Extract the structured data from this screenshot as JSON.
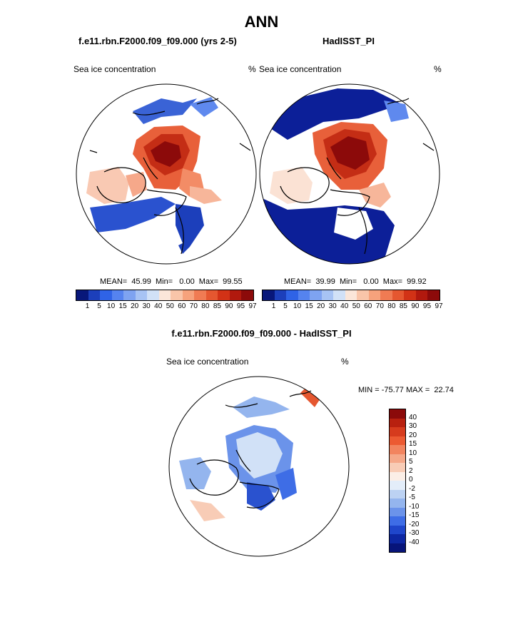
{
  "page": {
    "title": "ANN"
  },
  "panels": [
    {
      "name": "f.e11.rbn.F2000.f09_f09.000 (yrs 2-5)",
      "variable": "Sea ice concentration",
      "units": "%",
      "stats": "MEAN=  45.99  Min=   0.00  Max=  99.55"
    },
    {
      "name": "HadISST_PI",
      "variable": "Sea ice concentration",
      "units": "%",
      "stats": "MEAN=  39.99  Min=   0.00  Max=  99.92"
    }
  ],
  "abs_colorbar": {
    "colors": [
      "#08177a",
      "#1c3fbb",
      "#2f63e6",
      "#5583ef",
      "#7ea3f1",
      "#a7c3f4",
      "#d1e1f7",
      "#fbe6d9",
      "#f9c5a9",
      "#f6a27c",
      "#f07b53",
      "#e55730",
      "#d23216",
      "#b1190e",
      "#8c0a0a"
    ],
    "labels": [
      "1",
      "5",
      "10",
      "15",
      "20",
      "30",
      "40",
      "50",
      "60",
      "70",
      "80",
      "85",
      "90",
      "95",
      "97"
    ]
  },
  "diff": {
    "title": "f.e11.rbn.F2000.f09_f09.000 - HadISST_PI",
    "variable": "Sea ice concentration",
    "units": "%",
    "stats": "MIN = -75.77 MAX =  22.74",
    "colors": [
      "#8b0a0a",
      "#b8200f",
      "#d63b1d",
      "#ec5a32",
      "#f2845f",
      "#f5a889",
      "#f8ccb6",
      "#fbeee6",
      "#e3edf9",
      "#bcd2f3",
      "#94b5ee",
      "#6b93ea",
      "#3e6de6",
      "#1f46cb",
      "#0d27a3",
      "#07147a"
    ],
    "labels": [
      "40",
      "30",
      "20",
      "15",
      "10",
      "5",
      "2",
      "0",
      "-2",
      "-5",
      "-10",
      "-15",
      "-20",
      "-30",
      "-40"
    ]
  }
}
